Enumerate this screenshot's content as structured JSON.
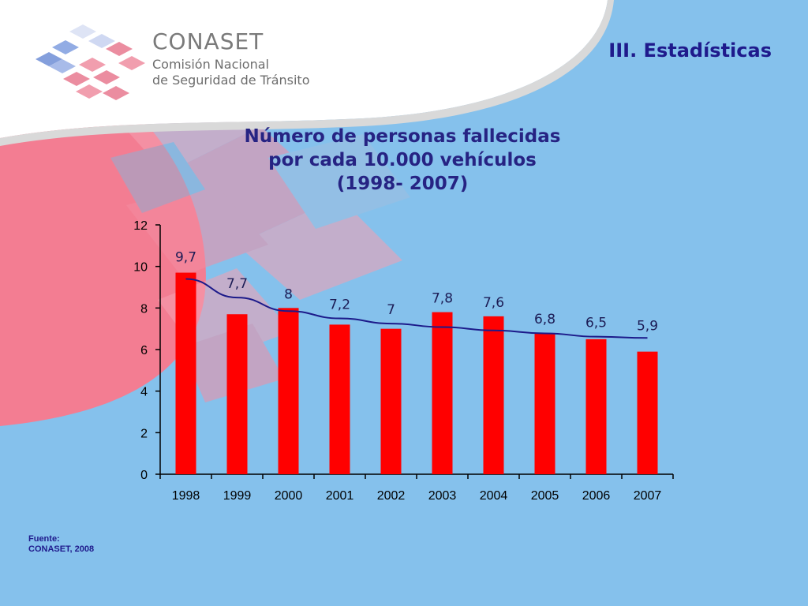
{
  "logo": {
    "name": "CONASET",
    "line1": "Comisión Nacional",
    "line2": "de Seguridad de Tránsito"
  },
  "section_title": "III. Estadísticas",
  "chart_title": {
    "line1": "Número de personas fallecidas",
    "line2": "por cada 10.000 vehículos",
    "line3": "(1998- 2007)"
  },
  "chart_data": {
    "type": "bar",
    "title": "Número de personas fallecidas por cada 10.000 vehículos (1998- 2007)",
    "categories": [
      "1998",
      "1999",
      "2000",
      "2001",
      "2002",
      "2003",
      "2004",
      "2005",
      "2006",
      "2007"
    ],
    "values": [
      9.7,
      7.7,
      8,
      7.2,
      7,
      7.8,
      7.6,
      6.8,
      6.5,
      5.9
    ],
    "data_labels": [
      "9,7",
      "7,7",
      "8",
      "7,2",
      "7",
      "7,8",
      "7,6",
      "6,8",
      "6,5",
      "5,9"
    ],
    "trend_values": [
      9.4,
      8.5,
      7.85,
      7.5,
      7.25,
      7.08,
      6.92,
      6.78,
      6.62,
      6.56
    ],
    "yticks": [
      0,
      2,
      4,
      6,
      8,
      10,
      12
    ],
    "ylim": [
      0,
      12
    ],
    "grid": false,
    "bar_color": "#ff0000",
    "trend_color": "#1c1a8a"
  },
  "source": {
    "label": "Fuente:",
    "value": "CONASET, 2008"
  },
  "colors": {
    "background": "#85c1ec",
    "pink": "#f5869a",
    "title": "#262383"
  }
}
